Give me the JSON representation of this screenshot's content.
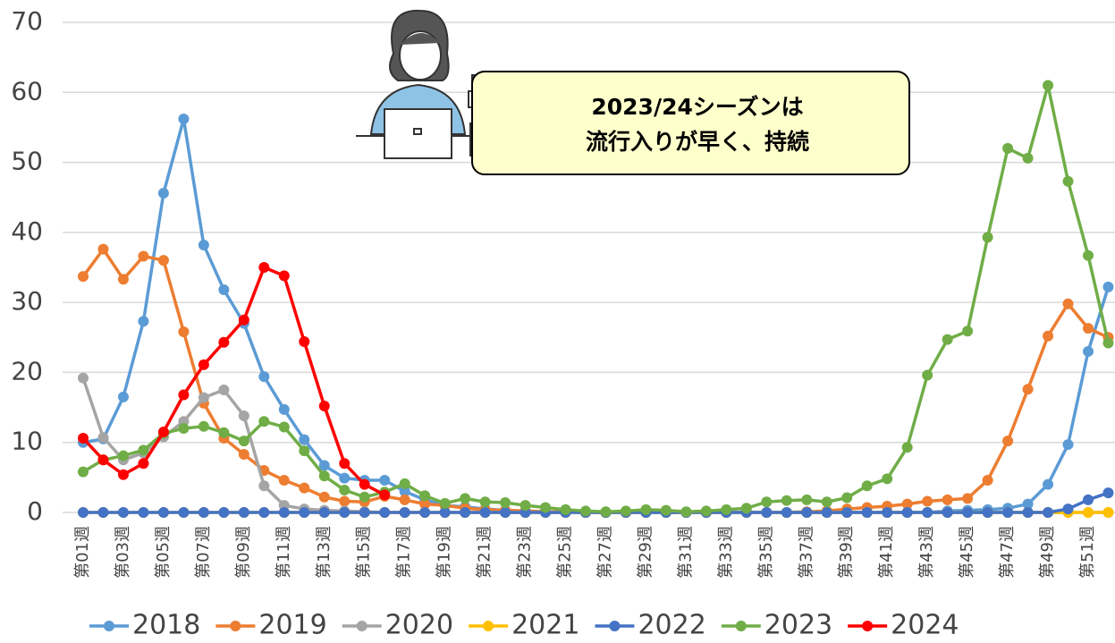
{
  "chart_data": {
    "type": "line",
    "categories": [
      "第01週",
      null,
      "第03週",
      null,
      "第05週",
      null,
      "第07週",
      null,
      "第09週",
      null,
      "第11週",
      null,
      "第13週",
      null,
      "第15週",
      null,
      "第17週",
      null,
      "第19週",
      null,
      "第21週",
      null,
      "第23週",
      null,
      "第25週",
      null,
      "第27週",
      null,
      "第29週",
      null,
      "第31週",
      null,
      "第33週",
      null,
      "第35週",
      null,
      "第37週",
      null,
      "第39週",
      null,
      "第41週",
      null,
      "第43週",
      null,
      "第45週",
      null,
      "第47週",
      null,
      "第49週",
      null,
      "第51週",
      null
    ],
    "series": [
      {
        "name": "2018",
        "color": "#5B9BD5",
        "values": [
          10,
          10.5,
          16.5,
          27.3,
          45.6,
          56.2,
          38.2,
          31.8,
          27,
          19.4,
          14.7,
          10.4,
          6.7,
          4.9,
          4.6,
          4.6,
          3,
          1.8,
          1,
          0.8,
          0.5,
          0.3,
          0.2,
          0.1,
          0.1,
          0,
          0,
          0,
          0,
          0,
          0,
          0,
          0,
          0,
          0,
          0,
          0,
          0,
          0,
          0,
          0,
          0,
          0,
          0.2,
          0.3,
          0.4,
          0.6,
          1.2,
          4,
          9.7,
          23,
          32.2
        ]
      },
      {
        "name": "2019",
        "color": "#ED7D31",
        "values": [
          33.7,
          37.6,
          33.3,
          36.6,
          36,
          25.8,
          15.6,
          10.6,
          8.3,
          6,
          4.6,
          3.5,
          2.2,
          1.6,
          1.5,
          2.3,
          1.8,
          1.2,
          1,
          0.6,
          0.4,
          0.3,
          0.2,
          0.1,
          0.1,
          0.1,
          0,
          0,
          0,
          0,
          0,
          0,
          0,
          0,
          0,
          0,
          0.1,
          0.2,
          0.5,
          0.7,
          0.9,
          1.2,
          1.6,
          1.8,
          2,
          4.6,
          10.2,
          17.6,
          25.2,
          29.8,
          26.3,
          25
        ]
      },
      {
        "name": "2020",
        "color": "#A5A5A5",
        "values": [
          19.2,
          10.7,
          7.5,
          8.5,
          10.8,
          13,
          16.4,
          17.5,
          13.8,
          3.8,
          1,
          0.5,
          0.3,
          0.2,
          0.1,
          0,
          0,
          0,
          0,
          0,
          0,
          0,
          0,
          0,
          0,
          0,
          0,
          0,
          0,
          0,
          0,
          0,
          0,
          0,
          0,
          0,
          0,
          0,
          0,
          0,
          0,
          0,
          0,
          0,
          0,
          0,
          0,
          0,
          0,
          0,
          0,
          0
        ]
      },
      {
        "name": "2021",
        "color": "#FFC000",
        "values": [
          0,
          0,
          0,
          0,
          0,
          0,
          0,
          0,
          0,
          0,
          0,
          0,
          0,
          0,
          0,
          0,
          0,
          0,
          0,
          0,
          0,
          0,
          0,
          0,
          0,
          0,
          0,
          0,
          0,
          0,
          0,
          0,
          0,
          0,
          0,
          0,
          0,
          0,
          0,
          0,
          0,
          0,
          0,
          0,
          0,
          0,
          0,
          0,
          0,
          0,
          0,
          0
        ]
      },
      {
        "name": "2022",
        "color": "#4472C4",
        "values": [
          0,
          0,
          0,
          0,
          0,
          0,
          0,
          0,
          0,
          0,
          0,
          0,
          0,
          0,
          0,
          0,
          0,
          0,
          0,
          0,
          0,
          0,
          0,
          0,
          0,
          0,
          0,
          0,
          0,
          0,
          0,
          0,
          0,
          0,
          0,
          0,
          0,
          0,
          0,
          0,
          0,
          0,
          0,
          0,
          0,
          0,
          0,
          0,
          0,
          0.5,
          1.8,
          2.8
        ]
      },
      {
        "name": "2023",
        "color": "#70AD47",
        "values": [
          5.8,
          7.5,
          8.1,
          8.9,
          11.3,
          12,
          12.3,
          11.4,
          10.2,
          13,
          12.2,
          8.8,
          5.2,
          3.2,
          2.2,
          2.9,
          4.1,
          2.4,
          1.3,
          2,
          1.5,
          1.4,
          1,
          0.7,
          0.4,
          0.2,
          0.1,
          0.2,
          0.4,
          0.3,
          0.1,
          0.2,
          0.4,
          0.6,
          1.5,
          1.7,
          1.8,
          1.5,
          2.1,
          3.8,
          4.8,
          9.3,
          19.6,
          24.7,
          25.9,
          39.3,
          52,
          50.6,
          61,
          47.3,
          36.7,
          24.2
        ]
      },
      {
        "name": "2024",
        "color": "#FF0000",
        "values": [
          10.6,
          7.5,
          5.4,
          7,
          11.5,
          16.8,
          21.1,
          24.3,
          27.5,
          35,
          33.8,
          24.4,
          15.2,
          7,
          4,
          2.5,
          null,
          null,
          null,
          null,
          null,
          null,
          null,
          null,
          null,
          null,
          null,
          null,
          null,
          null,
          null,
          null,
          null,
          null,
          null,
          null,
          null,
          null,
          null,
          null,
          null,
          null,
          null,
          null,
          null,
          null,
          null,
          null,
          null,
          null,
          null,
          null
        ]
      }
    ],
    "ylim": [
      0,
      70
    ],
    "yticks": [
      0,
      10,
      20,
      30,
      40,
      50,
      60,
      70
    ],
    "grid": true,
    "legend": "bottom",
    "annotation": [
      "2023/24シーズンは",
      "流行入りが早く、持続"
    ]
  }
}
